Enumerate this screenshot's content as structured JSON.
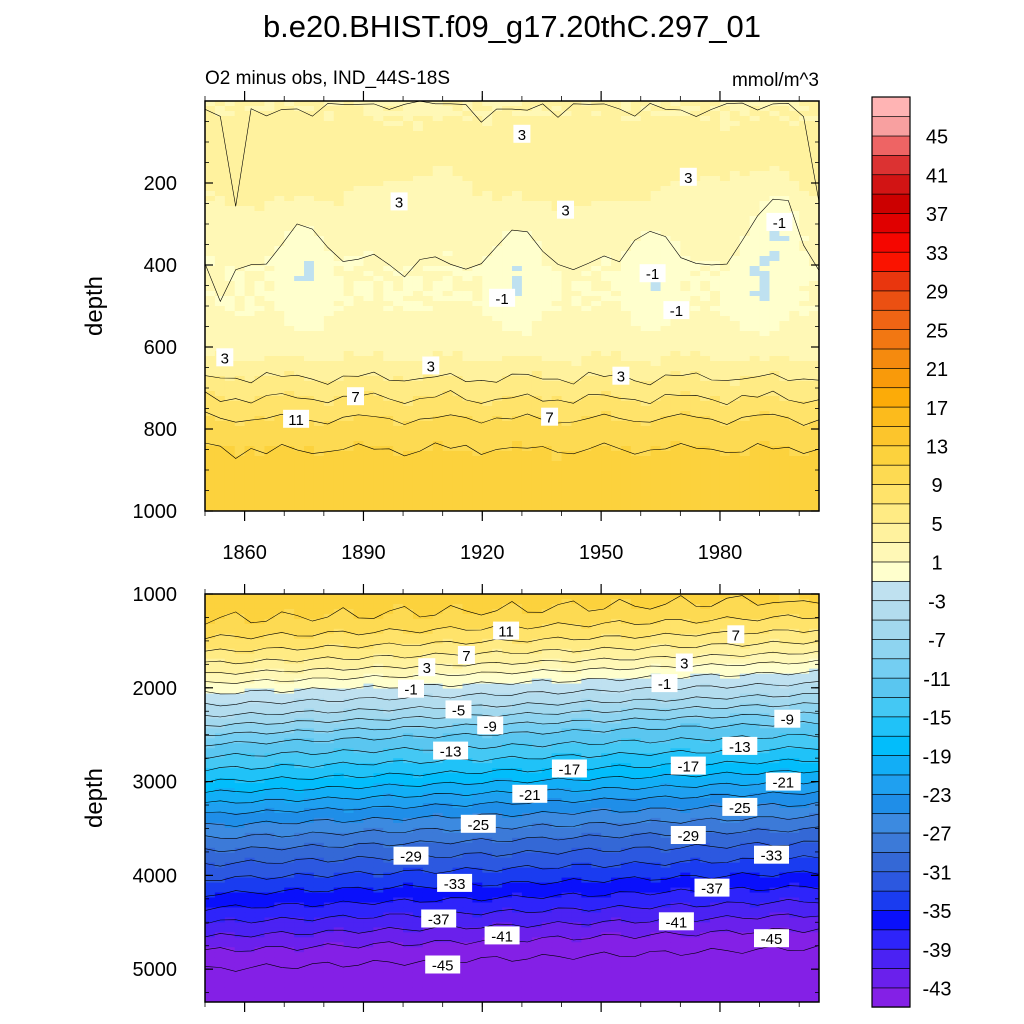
{
  "chart_data": {
    "type": "heatmap",
    "title": "b.e20.BHIST.f09_g17.20thC.297_01",
    "subtitle_left": "O2 minus obs, IND_44S-18S",
    "subtitle_right": "mmol/m^3",
    "variable": "O2 minus obs",
    "units": "mmol/m^3",
    "x": {
      "label": "",
      "range": [
        1850,
        2005
      ],
      "ticks": [
        1860,
        1890,
        1920,
        1950,
        1980
      ],
      "tick_labels": [
        "1860",
        "1890",
        "1920",
        "1950",
        "1980"
      ]
    },
    "panels": [
      {
        "name": "upper",
        "ylabel": "depth",
        "yrange": [
          0,
          1000
        ],
        "yticks": [
          200,
          400,
          600,
          800,
          1000
        ],
        "ytick_labels": [
          "200",
          "400",
          "600",
          "800",
          "1000"
        ],
        "depth_profile": [
          {
            "depth": 0,
            "value": 3
          },
          {
            "depth": 40,
            "value": 3
          },
          {
            "depth": 100,
            "value": 4
          },
          {
            "depth": 160,
            "value": 4
          },
          {
            "depth": 230,
            "value": 3
          },
          {
            "depth": 300,
            "value": 2
          },
          {
            "depth": 400,
            "value": 1
          },
          {
            "depth": 500,
            "value": 1
          },
          {
            "depth": 600,
            "value": 2
          },
          {
            "depth": 650,
            "value": 4
          },
          {
            "depth": 700,
            "value": 6
          },
          {
            "depth": 750,
            "value": 8
          },
          {
            "depth": 800,
            "value": 10
          },
          {
            "depth": 850,
            "value": 11
          },
          {
            "depth": 900,
            "value": 12
          },
          {
            "depth": 1000,
            "value": 12
          }
        ],
        "anomalies": [
          {
            "x": 1875,
            "depth": 420,
            "value": -1
          },
          {
            "x": 1929,
            "depth": 440,
            "value": -1
          },
          {
            "x": 1963,
            "depth": 430,
            "value": -1
          },
          {
            "x": 1990,
            "depth": 450,
            "value": -1
          },
          {
            "x": 1995,
            "depth": 330,
            "value": -1
          }
        ],
        "contour_labels": [
          {
            "x": 1930,
            "depth": 80,
            "text": "3"
          },
          {
            "x": 1972,
            "depth": 185,
            "text": "3"
          },
          {
            "x": 1899,
            "depth": 245,
            "text": "3"
          },
          {
            "x": 1941,
            "depth": 265,
            "text": "3"
          },
          {
            "x": 1995,
            "depth": 295,
            "text": "-1"
          },
          {
            "x": 1963,
            "depth": 420,
            "text": "-1"
          },
          {
            "x": 1925,
            "depth": 480,
            "text": "-1"
          },
          {
            "x": 1969,
            "depth": 510,
            "text": "-1"
          },
          {
            "x": 1855,
            "depth": 625,
            "text": "3"
          },
          {
            "x": 1907,
            "depth": 645,
            "text": "3"
          },
          {
            "x": 1955,
            "depth": 670,
            "text": "3"
          },
          {
            "x": 1888,
            "depth": 720,
            "text": "7"
          },
          {
            "x": 1937,
            "depth": 770,
            "text": "7"
          },
          {
            "x": 1873,
            "depth": 775,
            "text": "11"
          }
        ]
      },
      {
        "name": "lower",
        "ylabel": "depth",
        "yrange": [
          1000,
          5350
        ],
        "yticks": [
          1000,
          2000,
          3000,
          4000,
          5000
        ],
        "ytick_labels": [
          "1000",
          "2000",
          "3000",
          "4000",
          "5000"
        ],
        "depth_profile": [
          {
            "depth": 1000,
            "value": 12
          },
          {
            "depth": 1300,
            "value": 11
          },
          {
            "depth": 1550,
            "value": 8
          },
          {
            "depth": 1800,
            "value": 4
          },
          {
            "depth": 2000,
            "value": 0
          },
          {
            "depth": 2300,
            "value": -5
          },
          {
            "depth": 2600,
            "value": -11
          },
          {
            "depth": 3000,
            "value": -17
          },
          {
            "depth": 3400,
            "value": -24
          },
          {
            "depth": 3800,
            "value": -30
          },
          {
            "depth": 4200,
            "value": -35
          },
          {
            "depth": 4500,
            "value": -39
          },
          {
            "depth": 4800,
            "value": -43
          },
          {
            "depth": 5100,
            "value": -46
          },
          {
            "depth": 5350,
            "value": -47
          }
        ],
        "east_shoaling_m": 230,
        "contour_labels": [
          {
            "x": 1926,
            "depth": 1390,
            "text": "11"
          },
          {
            "x": 1984,
            "depth": 1430,
            "text": "7"
          },
          {
            "x": 1916,
            "depth": 1650,
            "text": "7"
          },
          {
            "x": 1971,
            "depth": 1730,
            "text": "3"
          },
          {
            "x": 1906,
            "depth": 1780,
            "text": "3"
          },
          {
            "x": 1966,
            "depth": 1950,
            "text": "-1"
          },
          {
            "x": 1902,
            "depth": 2010,
            "text": "-1"
          },
          {
            "x": 1914,
            "depth": 2230,
            "text": "-5"
          },
          {
            "x": 1997,
            "depth": 2330,
            "text": "-9"
          },
          {
            "x": 1922,
            "depth": 2400,
            "text": "-9"
          },
          {
            "x": 1985,
            "depth": 2620,
            "text": "-13"
          },
          {
            "x": 1912,
            "depth": 2670,
            "text": "-13"
          },
          {
            "x": 1942,
            "depth": 2860,
            "text": "-17"
          },
          {
            "x": 1972,
            "depth": 2830,
            "text": "-17"
          },
          {
            "x": 1996,
            "depth": 3000,
            "text": "-21"
          },
          {
            "x": 1932,
            "depth": 3130,
            "text": "-21"
          },
          {
            "x": 1985,
            "depth": 3270,
            "text": "-25"
          },
          {
            "x": 1919,
            "depth": 3450,
            "text": "-25"
          },
          {
            "x": 1972,
            "depth": 3570,
            "text": "-29"
          },
          {
            "x": 1902,
            "depth": 3790,
            "text": "-29"
          },
          {
            "x": 1993,
            "depth": 3780,
            "text": "-33"
          },
          {
            "x": 1913,
            "depth": 4080,
            "text": "-33"
          },
          {
            "x": 1978,
            "depth": 4130,
            "text": "-37"
          },
          {
            "x": 1909,
            "depth": 4460,
            "text": "-37"
          },
          {
            "x": 1969,
            "depth": 4490,
            "text": "-41"
          },
          {
            "x": 1925,
            "depth": 4640,
            "text": "-41"
          },
          {
            "x": 1993,
            "depth": 4670,
            "text": "-45"
          },
          {
            "x": 1910,
            "depth": 4950,
            "text": "-45"
          }
        ]
      }
    ],
    "colorbar": {
      "levels": [
        -45,
        -43,
        -41,
        -39,
        -37,
        -35,
        -33,
        -31,
        -29,
        -27,
        -25,
        -23,
        -21,
        -19,
        -17,
        -15,
        -13,
        -11,
        -9,
        -7,
        -5,
        -3,
        -1,
        1,
        3,
        5,
        7,
        9,
        11,
        13,
        15,
        17,
        19,
        21,
        23,
        25,
        27,
        29,
        31,
        33,
        35,
        37,
        39,
        41,
        43,
        45,
        47
      ],
      "labeled": [
        -43,
        -39,
        -35,
        -31,
        -27,
        -23,
        -19,
        -15,
        -11,
        -7,
        -3,
        1,
        5,
        9,
        13,
        17,
        21,
        25,
        29,
        33,
        37,
        41,
        45
      ],
      "colors": [
        "#8420e6",
        "#6a20ec",
        "#4b22f3",
        "#2e24fa",
        "#0a10fb",
        "#1a3cf0",
        "#2c58e0",
        "#3468d6",
        "#3c7ad8",
        "#3c8ae0",
        "#1f8ee8",
        "#1fa0f0",
        "#12aef6",
        "#02bdfb",
        "#20c2f8",
        "#44c8f4",
        "#5ac6f0",
        "#74cef2",
        "#8ed4f0",
        "#a2d8ee",
        "#b2dcee",
        "#bfe1f0",
        "#ffffcd",
        "#fff8b6",
        "#fff29e",
        "#ffeb84",
        "#ffe36a",
        "#fdda52",
        "#fcd23d",
        "#fcc52c",
        "#fcbb1c",
        "#fcab08",
        "#f99a0a",
        "#f58a0e",
        "#f27712",
        "#ef6414",
        "#eb5012",
        "#e9360e",
        "#fa1300",
        "#f50600",
        "#e00000",
        "#cc0000",
        "#d21414",
        "#dc3232",
        "#ee6464",
        "#f8a0a0",
        "#ffb4b4"
      ]
    }
  }
}
